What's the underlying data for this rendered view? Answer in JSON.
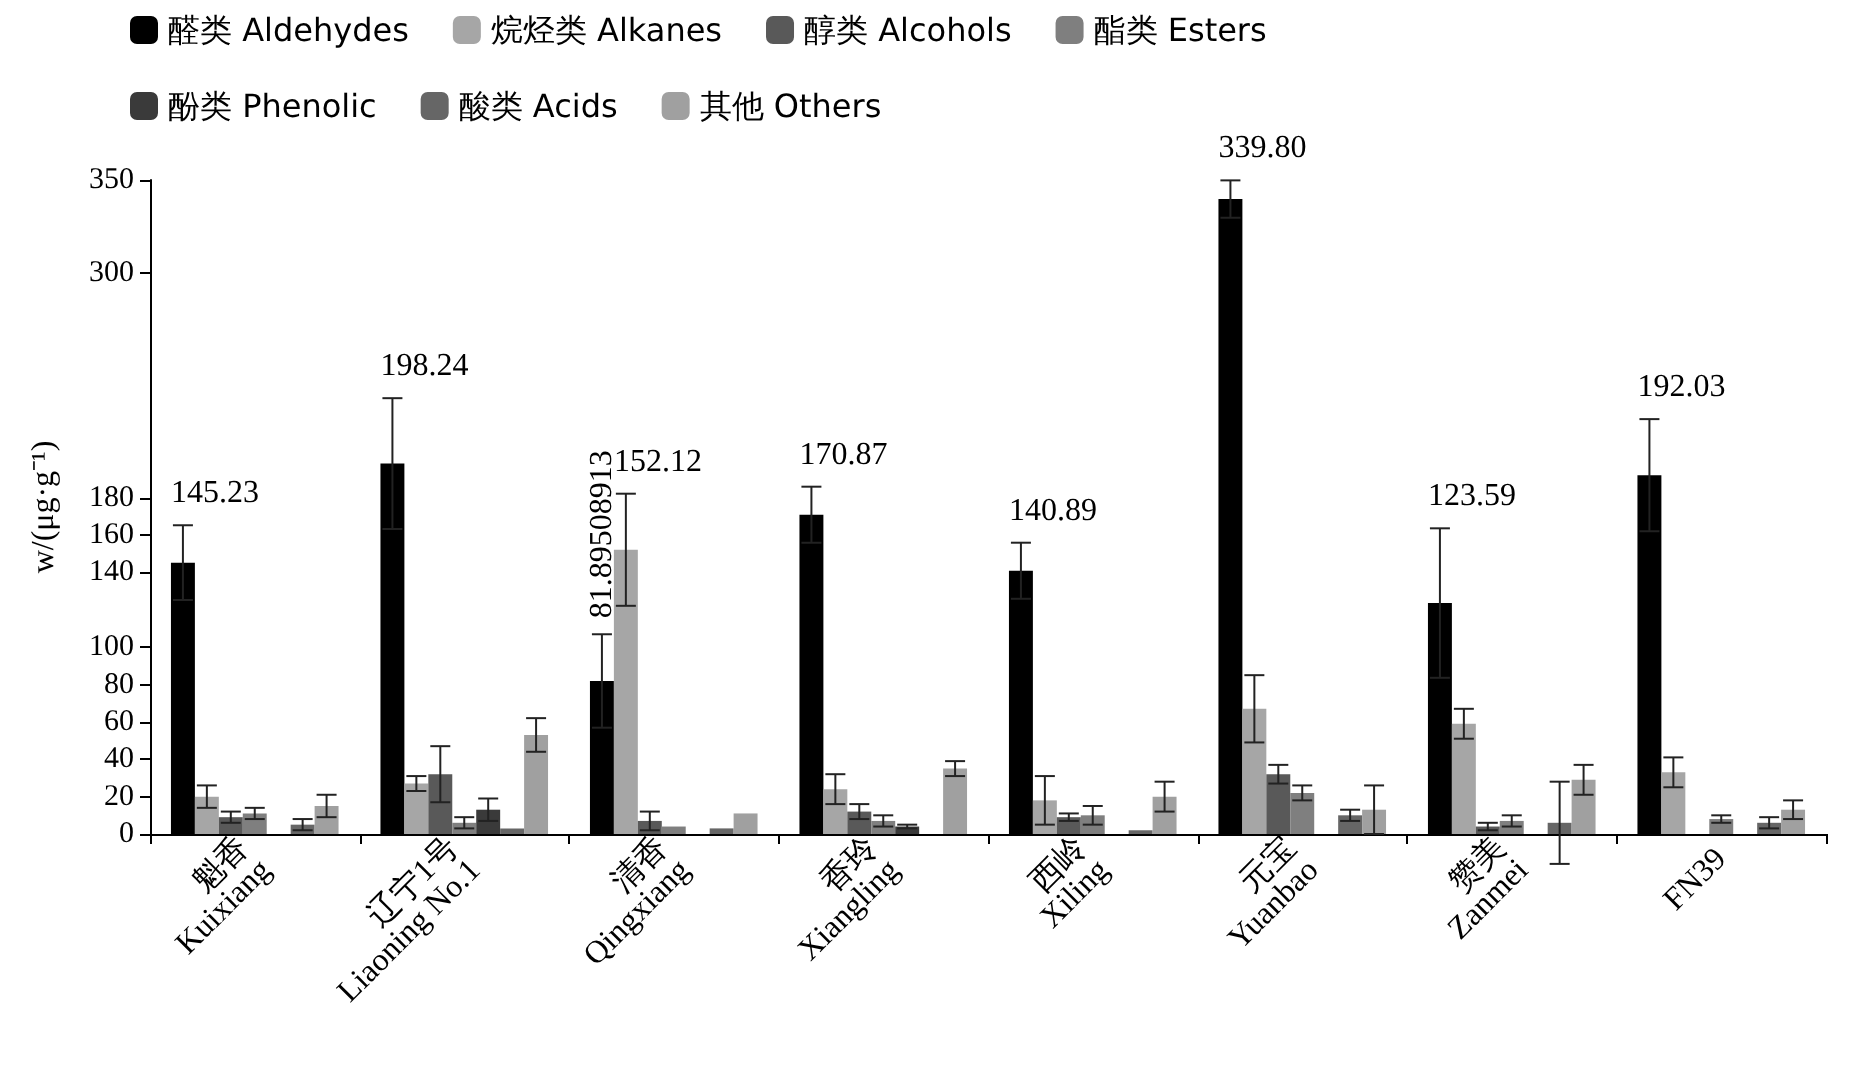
{
  "chart_data": {
    "type": "bar",
    "ylabel": "w/(μg·g⁻¹)",
    "categories": [
      "魁香 Kuixiang",
      "辽宁1号 Liaoning No.1",
      "清香 Qingxiang",
      "香玲 Xiangling",
      "西岭 Xiling",
      "元宝 Yuanbao",
      "赞美 Zanmei",
      "FN39"
    ],
    "series": [
      {
        "name": "醛类 Aldehydes",
        "color": "#000000",
        "values": [
          145.23,
          198.24,
          81.89508913,
          170.87,
          140.89,
          339.8,
          123.59,
          192.03
        ],
        "errors": [
          20,
          35,
          25,
          15,
          15,
          10,
          40,
          30
        ],
        "value_labels": [
          "145.23",
          "198.24",
          "81.89508913",
          "170.87",
          "140.89",
          "339.80",
          "123.59",
          "192.03"
        ]
      },
      {
        "name": "烷烃类 Alkanes",
        "color": "#a6a6a6",
        "values": [
          20,
          27,
          152.12,
          24,
          18,
          67,
          59,
          33
        ],
        "errors": [
          6,
          4,
          30,
          8,
          13,
          18,
          8,
          8
        ],
        "value_labels": [
          null,
          null,
          "152.12",
          null,
          null,
          null,
          null,
          null
        ]
      },
      {
        "name": "醇类 Alcohols",
        "color": "#595959",
        "values": [
          9,
          32,
          7,
          12,
          9,
          32,
          4,
          0
        ],
        "errors": [
          3,
          15,
          5,
          4,
          2,
          5,
          2,
          null
        ]
      },
      {
        "name": "酯类 Esters",
        "color": "#7f7f7f",
        "values": [
          11,
          6,
          4,
          7,
          10,
          22,
          7,
          8
        ],
        "errors": [
          3,
          3,
          null,
          3,
          5,
          4,
          3,
          2
        ]
      },
      {
        "name": "酚类 Phenolic",
        "color": "#3a3a3a",
        "values": [
          0,
          13,
          0,
          4,
          0,
          0,
          0,
          0
        ],
        "errors": [
          null,
          6,
          null,
          1,
          null,
          null,
          null,
          null
        ]
      },
      {
        "name": "酸类 Acids",
        "color": "#666666",
        "values": [
          5,
          3,
          3,
          0,
          2,
          10,
          6,
          6
        ],
        "errors": [
          3,
          null,
          null,
          null,
          null,
          3,
          22,
          3
        ]
      },
      {
        "name": "其他 Others",
        "color": "#a0a0a0",
        "values": [
          15,
          53,
          11,
          35,
          20,
          13,
          29,
          13
        ],
        "errors": [
          6,
          9,
          null,
          4,
          8,
          13,
          8,
          5
        ]
      }
    ],
    "ylim": [
      0,
      350
    ],
    "yticks": [
      0,
      20,
      40,
      60,
      80,
      100,
      140,
      160,
      180,
      300,
      350
    ],
    "grid": false,
    "legend": "top"
  }
}
